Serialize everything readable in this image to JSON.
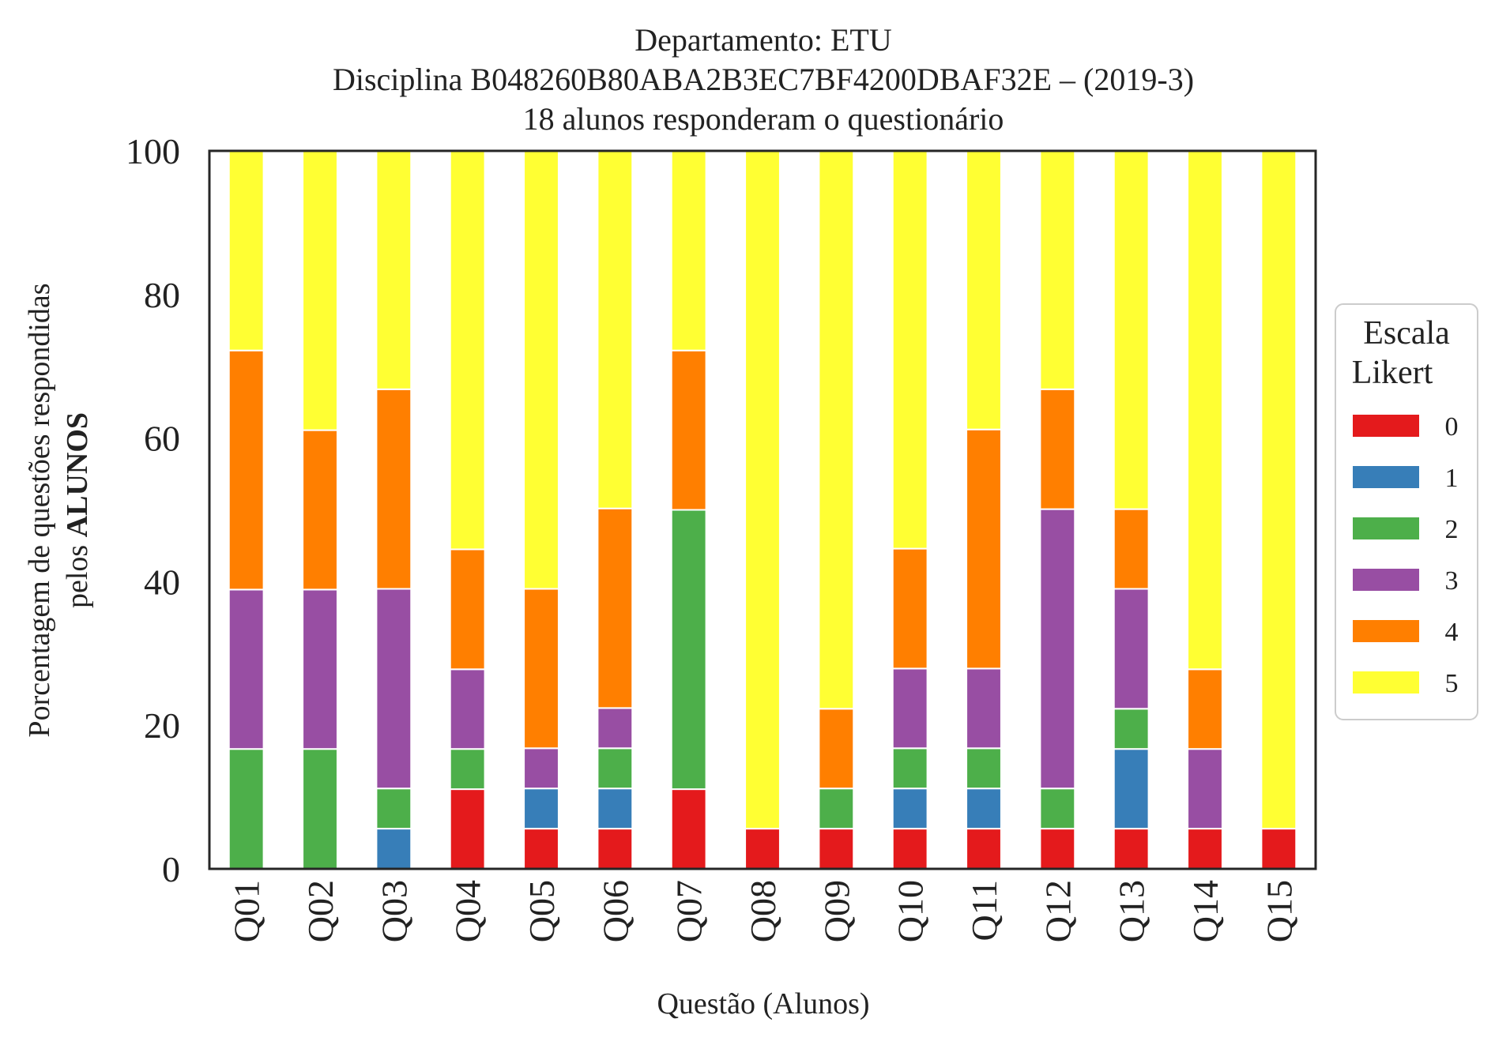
{
  "chart_data": {
    "type": "bar",
    "stacked": true,
    "title_lines": [
      "Departamento: ETU",
      "Disciplina B048260B80ABA2B3EC7BF4200DBAF32E – (2019-3)",
      "18 alunos responderam o questionário"
    ],
    "xlabel": "Questão (Alunos)",
    "ylabel_line1": "Porcentagem de questões respondidas",
    "ylabel_line2_prefix": "pelos ",
    "ylabel_line2_bold": "ALUNOS",
    "ylim": [
      0,
      100
    ],
    "yticks": [
      "0",
      "20",
      "40",
      "60",
      "80",
      "100"
    ],
    "grid": false,
    "legend": {
      "title_lines": [
        "Escala",
        "Likert"
      ],
      "placement": "center-right outside"
    },
    "categories": [
      "Q01",
      "Q02",
      "Q03",
      "Q04",
      "Q05",
      "Q06",
      "Q07",
      "Q08",
      "Q09",
      "Q10",
      "Q11",
      "Q12",
      "Q13",
      "Q14",
      "Q15"
    ],
    "series": [
      {
        "name": "0",
        "color": "#e41a1c",
        "values": [
          0,
          0,
          0,
          11.1,
          5.6,
          5.6,
          11.1,
          5.6,
          5.6,
          5.6,
          5.6,
          5.6,
          5.6,
          5.6,
          5.6
        ]
      },
      {
        "name": "1",
        "color": "#377eb8",
        "values": [
          0,
          0,
          5.6,
          0,
          5.6,
          5.6,
          0,
          0,
          0,
          5.6,
          5.6,
          0,
          11.1,
          0,
          0
        ]
      },
      {
        "name": "2",
        "color": "#4daf4a",
        "values": [
          16.7,
          16.7,
          5.6,
          5.6,
          0,
          5.6,
          38.9,
          0,
          5.6,
          5.6,
          5.6,
          5.6,
          5.6,
          0,
          0
        ]
      },
      {
        "name": "3",
        "color": "#984ea3",
        "values": [
          22.2,
          22.2,
          27.8,
          11.1,
          5.6,
          5.6,
          0,
          0,
          0,
          11.1,
          11.1,
          38.9,
          16.7,
          11.1,
          0
        ]
      },
      {
        "name": "4",
        "color": "#ff7f00",
        "values": [
          33.3,
          22.2,
          27.8,
          16.7,
          22.2,
          27.8,
          22.2,
          0,
          11.1,
          16.7,
          33.3,
          16.7,
          11.1,
          11.1,
          0
        ]
      },
      {
        "name": "5",
        "color": "#ffff33",
        "values": [
          27.8,
          38.9,
          33.3,
          55.6,
          61.1,
          50.0,
          27.8,
          94.4,
          77.8,
          55.6,
          38.9,
          33.3,
          50.0,
          72.2,
          94.4
        ]
      }
    ]
  }
}
